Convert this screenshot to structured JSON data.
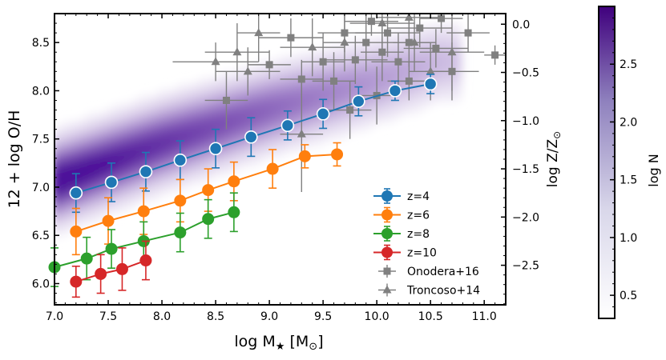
{
  "chart_data": {
    "type": "scatter",
    "xlabel": "log  M",
    "xlabel_sub": "★",
    "xlabel_unit_open": "[M",
    "xlabel_unit_sub": "⊙",
    "xlabel_unit_close": "]",
    "ylabel": "12 + log O/H",
    "ylabel_right": "log  Z/Z",
    "ylabel_right_sub": "⊙",
    "colorbar_label": "log  N",
    "xlim": [
      7.0,
      11.2
    ],
    "ylim": [
      5.78,
      8.8
    ],
    "x_ticks": [
      7.0,
      7.5,
      8.0,
      8.5,
      9.0,
      9.5,
      10.0,
      10.5,
      11.0
    ],
    "y_ticks": [
      6.0,
      6.5,
      7.0,
      7.5,
      8.0,
      8.5
    ],
    "right_ticks": [
      {
        "value": 0.0,
        "label": "0.0"
      },
      {
        "value": -0.5,
        "label": "−0.5"
      },
      {
        "value": -1.0,
        "label": "−1.0"
      },
      {
        "value": -1.5,
        "label": "−1.5"
      },
      {
        "value": -2.0,
        "label": "−2.0"
      },
      {
        "value": -2.5,
        "label": "−2.5"
      }
    ],
    "solar_oh": 8.69,
    "colorbar": {
      "range": [
        0.3,
        3.0
      ],
      "ticks": [
        {
          "value": 0.5,
          "label": "0.5"
        },
        {
          "value": 1.0,
          "label": "1.0"
        },
        {
          "value": 1.5,
          "label": "1.5"
        },
        {
          "value": 2.0,
          "label": "2.0"
        },
        {
          "value": 2.5,
          "label": "2.5"
        }
      ],
      "color_low": "#ffffff",
      "color_high": "#3f007d"
    },
    "series": [
      {
        "name": "z=4",
        "color": "#1f77b4",
        "ring": true,
        "x": [
          7.2,
          7.53,
          7.85,
          8.17,
          8.5,
          8.83,
          9.17,
          9.5,
          9.83,
          10.17,
          10.5
        ],
        "y": [
          6.94,
          7.05,
          7.16,
          7.28,
          7.4,
          7.52,
          7.64,
          7.76,
          7.89,
          8.0,
          8.07
        ],
        "err": [
          0.2,
          0.2,
          0.2,
          0.2,
          0.2,
          0.2,
          0.15,
          0.15,
          0.15,
          0.1,
          0.1
        ]
      },
      {
        "name": "z=6",
        "color": "#ff7f0e",
        "ring": false,
        "x": [
          7.2,
          7.5,
          7.83,
          8.17,
          8.43,
          8.67,
          9.03,
          9.33,
          9.63
        ],
        "y": [
          6.54,
          6.65,
          6.75,
          6.86,
          6.97,
          7.06,
          7.19,
          7.32,
          7.34
        ],
        "err": [
          0.24,
          0.24,
          0.24,
          0.22,
          0.22,
          0.2,
          0.2,
          0.12,
          0.12
        ]
      },
      {
        "name": "z=8",
        "color": "#2ca02c",
        "ring": false,
        "x": [
          7.0,
          7.3,
          7.53,
          7.83,
          8.17,
          8.43,
          8.67
        ],
        "y": [
          6.17,
          6.26,
          6.36,
          6.44,
          6.53,
          6.67,
          6.74
        ],
        "err": [
          0.2,
          0.22,
          0.2,
          0.2,
          0.2,
          0.2,
          0.2
        ]
      },
      {
        "name": "z=10",
        "color": "#d62728",
        "ring": false,
        "x": [
          7.2,
          7.43,
          7.63,
          7.85
        ],
        "y": [
          6.02,
          6.1,
          6.15,
          6.24
        ],
        "err": [
          0.16,
          0.2,
          0.22,
          0.2
        ]
      }
    ],
    "observations": [
      {
        "name": "Onodera+16",
        "marker": "plus",
        "color": "#808080",
        "points": [
          {
            "x": 9.0,
            "y": 8.27,
            "xe": 0.2,
            "ye": 0.15
          },
          {
            "x": 9.2,
            "y": 8.55,
            "xe": 0.3,
            "ye": 0.2
          },
          {
            "x": 9.5,
            "y": 8.3,
            "xe": 0.2,
            "ye": 0.3
          },
          {
            "x": 9.7,
            "y": 8.6,
            "xe": 0.25,
            "ye": 0.2
          },
          {
            "x": 9.8,
            "y": 8.32,
            "xe": 0.3,
            "ye": 0.25
          },
          {
            "x": 9.9,
            "y": 8.5,
            "xe": 0.2,
            "ye": 0.3
          },
          {
            "x": 9.95,
            "y": 8.72,
            "xe": 0.25,
            "ye": 0.15
          },
          {
            "x": 10.05,
            "y": 8.4,
            "xe": 0.2,
            "ye": 0.3
          },
          {
            "x": 10.1,
            "y": 8.6,
            "xe": 0.3,
            "ye": 0.25
          },
          {
            "x": 10.2,
            "y": 8.3,
            "xe": 0.25,
            "ye": 0.3
          },
          {
            "x": 10.3,
            "y": 8.5,
            "xe": 0.2,
            "ye": 0.25
          },
          {
            "x": 10.4,
            "y": 8.65,
            "xe": 0.3,
            "ye": 0.2
          },
          {
            "x": 10.55,
            "y": 8.44,
            "xe": 0.3,
            "ye": 0.2
          },
          {
            "x": 10.6,
            "y": 8.75,
            "xe": 0.2,
            "ye": 0.15
          },
          {
            "x": 10.7,
            "y": 8.2,
            "xe": 0.25,
            "ye": 0.3
          },
          {
            "x": 9.6,
            "y": 8.1,
            "xe": 0.2,
            "ye": 0.3
          },
          {
            "x": 9.3,
            "y": 8.12,
            "xe": 0.2,
            "ye": 0.2
          },
          {
            "x": 10.85,
            "y": 8.6,
            "xe": 0.2,
            "ye": 0.2
          },
          {
            "x": 11.1,
            "y": 8.37,
            "xe": 0.1,
            "ye": 0.1
          },
          {
            "x": 8.6,
            "y": 7.9,
            "xe": 0.2,
            "ye": 0.3
          },
          {
            "x": 10.0,
            "y": 7.95,
            "xe": 0.2,
            "ye": 0.3
          },
          {
            "x": 10.3,
            "y": 8.1,
            "xe": 0.2,
            "ye": 0.2
          },
          {
            "x": 9.75,
            "y": 7.8,
            "xe": 0.2,
            "ye": 0.3
          }
        ]
      },
      {
        "name": "Troncoso+14",
        "marker": "triangle",
        "color": "#808080",
        "points": [
          {
            "x": 8.9,
            "y": 8.6,
            "xe": 0.2,
            "ye": 0.3
          },
          {
            "x": 8.5,
            "y": 8.3,
            "xe": 0.4,
            "ye": 0.2
          },
          {
            "x": 8.8,
            "y": 8.2,
            "xe": 0.3,
            "ye": 0.25
          },
          {
            "x": 9.4,
            "y": 8.45,
            "xe": 0.3,
            "ye": 0.3
          },
          {
            "x": 10.05,
            "y": 8.7,
            "xe": 0.3,
            "ye": 0.3
          },
          {
            "x": 10.35,
            "y": 8.5,
            "xe": 0.2,
            "ye": 0.3
          },
          {
            "x": 10.5,
            "y": 8.2,
            "xe": 0.2,
            "ye": 0.3
          },
          {
            "x": 9.3,
            "y": 7.55,
            "xe": 0.2,
            "ye": 0.6
          },
          {
            "x": 10.3,
            "y": 8.76,
            "xe": 0.3,
            "ye": 0.2
          },
          {
            "x": 8.7,
            "y": 8.4,
            "xe": 0.3,
            "ye": 0.3
          },
          {
            "x": 9.7,
            "y": 8.5,
            "xe": 0.2,
            "ye": 0.3
          },
          {
            "x": 10.7,
            "y": 8.4,
            "xe": 0.3,
            "ye": 0.4
          }
        ]
      }
    ],
    "density_ridge": {
      "x": [
        7.0,
        8.0,
        9.0,
        10.0,
        10.6
      ],
      "y": [
        7.05,
        7.45,
        7.8,
        8.1,
        8.3
      ]
    },
    "legend": {
      "position": "lower right"
    }
  }
}
